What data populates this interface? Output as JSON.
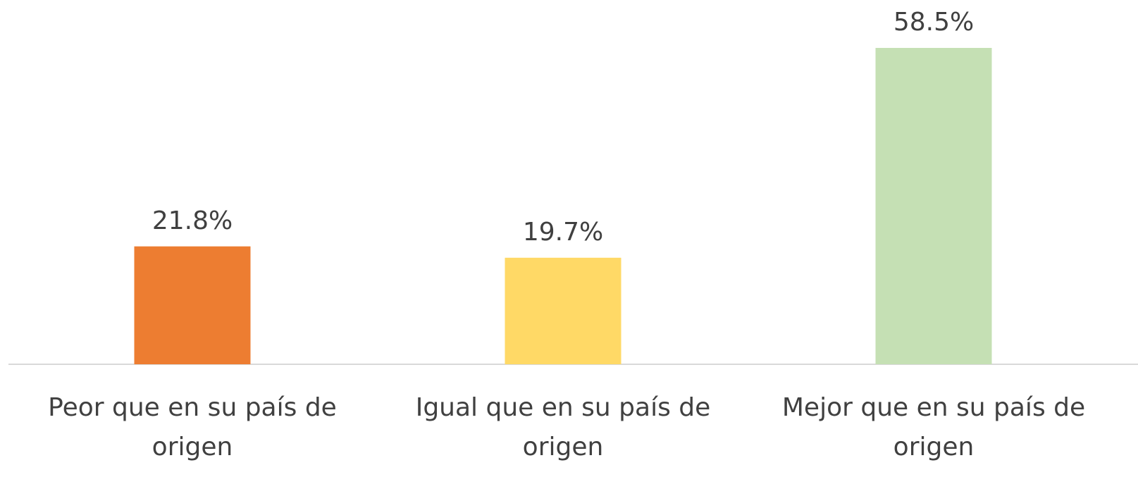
{
  "chart_data": {
    "type": "bar",
    "categories": [
      "Peor que en su país de origen",
      "Igual que en su país de origen",
      "Mejor que en su país de origen"
    ],
    "values": [
      21.8,
      19.7,
      58.5
    ],
    "value_labels": [
      "21.8%",
      "19.7%",
      "58.5%"
    ],
    "colors": [
      "#ed7d31",
      "#ffd966",
      "#c5e0b4"
    ]
  }
}
